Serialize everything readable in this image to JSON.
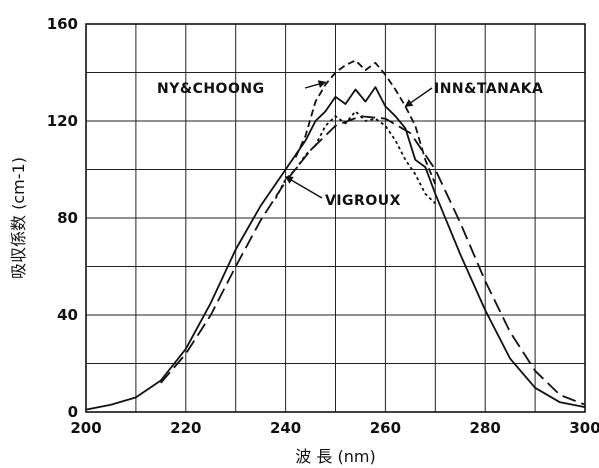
{
  "chart_data": {
    "type": "line",
    "xlabel": "波 長 (nm)",
    "ylabel": "吸収係数 (cm-1)",
    "xlim": [
      200,
      300
    ],
    "ylim": [
      0,
      160
    ],
    "x_ticks": [
      200,
      220,
      240,
      260,
      280,
      300
    ],
    "y_ticks": [
      0,
      40,
      80,
      120,
      160
    ],
    "grid": true,
    "series": [
      {
        "name": "INN&TANAKA",
        "style": "solid",
        "x": [
          200,
          205,
          210,
          215,
          220,
          225,
          230,
          235,
          240,
          244,
          246,
          248,
          250,
          252,
          254,
          256,
          258,
          260,
          262,
          264,
          266,
          268,
          270,
          275,
          280,
          285,
          290,
          295,
          300
        ],
        "y": [
          1,
          3,
          6,
          13,
          26,
          45,
          67,
          85,
          100,
          112,
          120,
          124,
          130,
          127,
          133,
          128,
          134,
          126,
          122,
          117,
          104,
          101,
          90,
          65,
          42,
          22,
          10,
          4,
          2
        ]
      },
      {
        "name": "NY&CHOONG",
        "style": "dashed",
        "x": [
          242,
          244,
          246,
          248,
          250,
          252,
          254,
          256,
          258,
          260,
          262,
          264,
          266,
          268,
          270
        ],
        "y": [
          105,
          114,
          128,
          135,
          140,
          143,
          145,
          141,
          144,
          139,
          133,
          126,
          118,
          104,
          94
        ]
      },
      {
        "name": "VIGROUX",
        "style": "short-dash",
        "x": [
          238,
          240,
          242,
          244,
          246,
          248,
          250,
          252,
          254,
          256,
          258,
          260,
          262,
          264,
          266,
          268,
          270
        ],
        "y": [
          88,
          96,
          100,
          106,
          110,
          118,
          122,
          119,
          124,
          120,
          121,
          118,
          112,
          104,
          98,
          90,
          86
        ]
      },
      {
        "name": "",
        "style": "long-dash",
        "x": [
          215,
          220,
          225,
          230,
          235,
          240,
          245,
          250,
          255,
          260,
          265,
          270,
          275,
          280,
          285,
          290,
          295,
          300
        ],
        "y": [
          12,
          24,
          40,
          60,
          79,
          95,
          108,
          118,
          122,
          121,
          115,
          100,
          78,
          54,
          33,
          17,
          7,
          3
        ]
      }
    ],
    "annotations": [
      {
        "text": "NY&CHOONG",
        "target_series": "NY&CHOONG"
      },
      {
        "text": "INN&TANAKA",
        "target_series": "INN&TANAKA"
      },
      {
        "text": "VIGROUX",
        "target_series": "VIGROUX"
      }
    ]
  }
}
